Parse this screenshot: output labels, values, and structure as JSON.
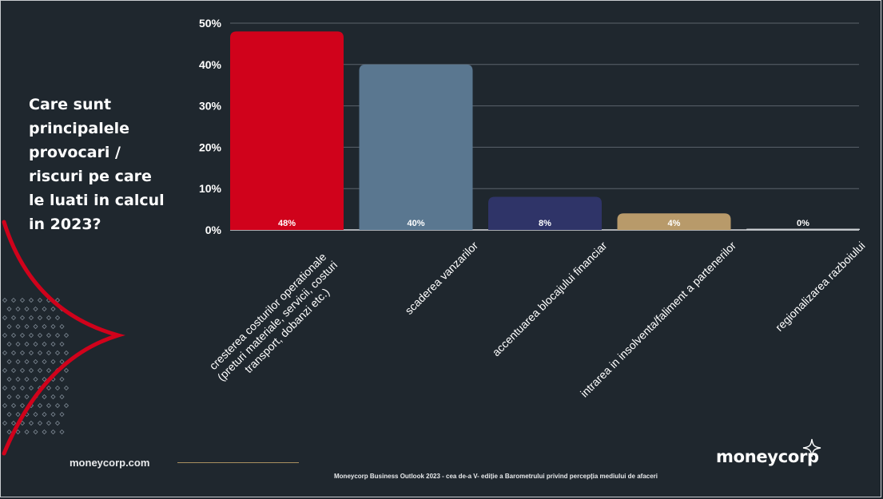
{
  "question": "Care sunt principalele provocari / riscuri pe care le luati in calcul in 2023?",
  "footer": {
    "site": "moneycorp.com",
    "note": "Moneycorp Business Outlook 2023 - cea de-a V- ediție a Barometrului privind percepția mediului de afaceri",
    "logo": "moneycorp"
  },
  "colors": {
    "background": "#1f272e",
    "accent_red": "#d0021b",
    "gridline": "#5b636b"
  },
  "chart_data": {
    "type": "bar",
    "categories": [
      [
        "cresterea costurilor operationale",
        "(preturi materiale, servicii, costuri",
        "transport, dobanzi etc.)"
      ],
      [
        "scaderea vanzarilor"
      ],
      [
        "accentuarea blocajului financiar"
      ],
      [
        "intrarea in insolventa/faliment a partenerilor"
      ],
      [
        "regionalizarea razboiului"
      ]
    ],
    "values": [
      48,
      40,
      8,
      4,
      0
    ],
    "value_labels": [
      "48%",
      "40%",
      "8%",
      "4%",
      "0%"
    ],
    "bar_colors": [
      "#d0021b",
      "#5a7790",
      "#2f3468",
      "#b89a6a",
      "#cfd3d7"
    ],
    "ylim": [
      0,
      50
    ],
    "y_ticks": [
      0,
      10,
      20,
      30,
      40,
      50
    ],
    "y_tick_labels": [
      "0%",
      "10%",
      "20%",
      "30%",
      "40%",
      "50%"
    ],
    "grid": true,
    "legend": "none"
  }
}
